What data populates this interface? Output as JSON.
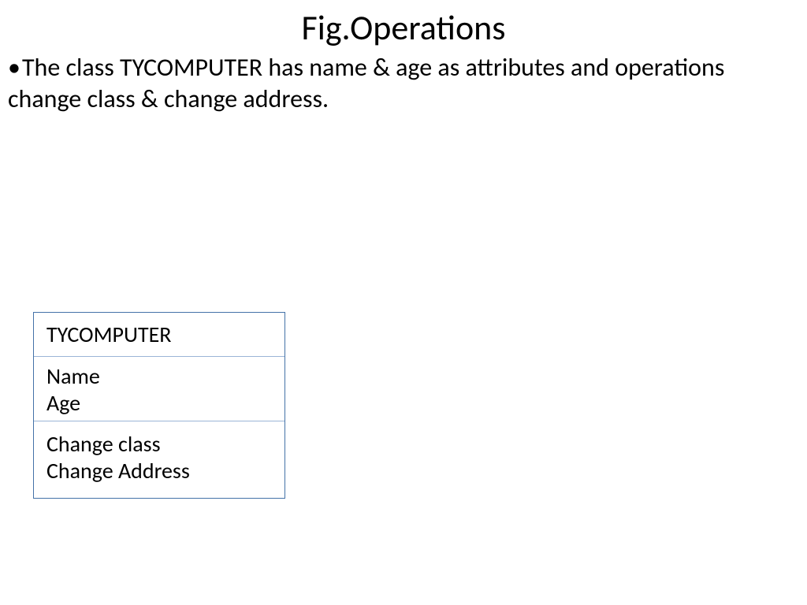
{
  "title": "Fig.Operations",
  "bullet": "The class TYCOMPUTER has name & age as attributes and operations change class & change address.",
  "class_box": {
    "name": "TYCOMPUTER",
    "attributes": [
      "Name",
      "Age"
    ],
    "operations": [
      "Change class",
      "Change Address"
    ],
    "border_color": "#4472a8",
    "divider_color": "#9bb5d6"
  },
  "colors": {
    "background": "#ffffff",
    "text": "#000000"
  },
  "fonts": {
    "title_size": 44,
    "body_size": 32,
    "box_size": 28
  }
}
